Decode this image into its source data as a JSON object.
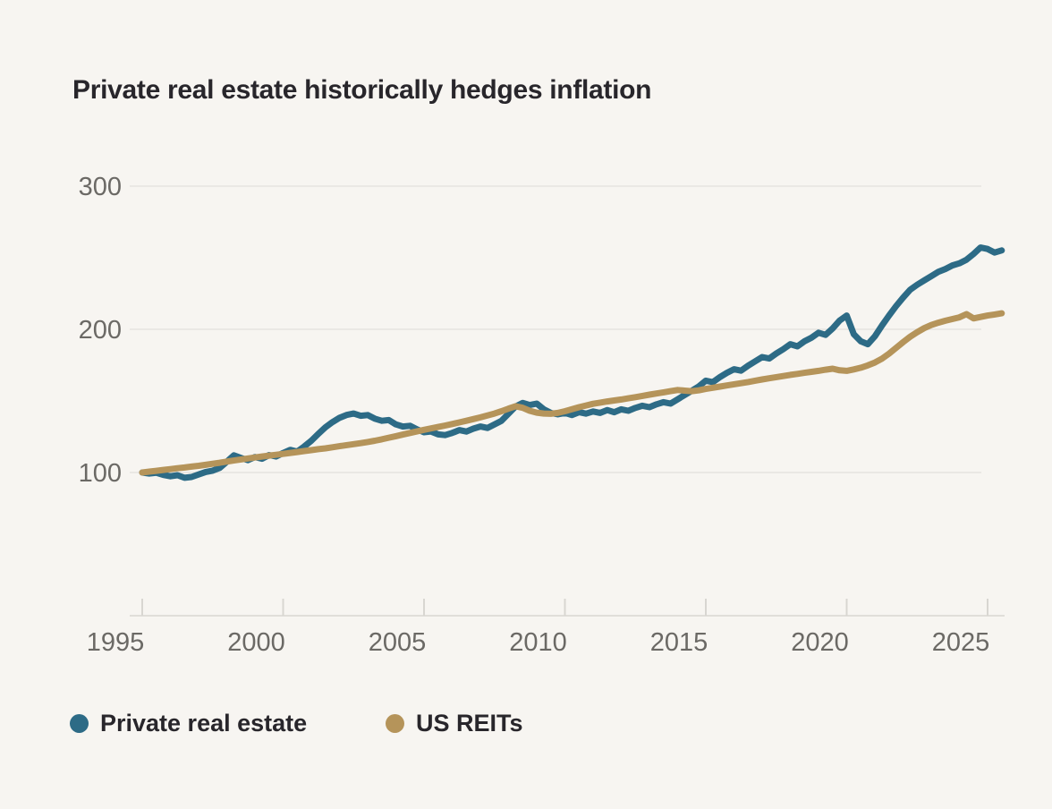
{
  "title": "Private real estate historically hedges inflation",
  "colors": {
    "background": "#f7f5f1",
    "title_text": "#28262b",
    "private_real_estate": "#2d6b86",
    "us_reits": "#b5945a",
    "gridline": "#e6e4df",
    "axis_line": "#d8d6d1",
    "tick_text": "#6b6965"
  },
  "legend": [
    {
      "label": "Private real estate",
      "color": "#2d6b86"
    },
    {
      "label": "US REITs",
      "color": "#b5945a"
    }
  ],
  "chart_data": {
    "type": "line",
    "title": "Private real estate historically hedges inflation",
    "xlabel": "",
    "ylabel": "",
    "x_ticks": [
      1995,
      2000,
      2005,
      2010,
      2015,
      2020,
      2025
    ],
    "y_ticks": [
      100,
      200,
      300
    ],
    "x_range": [
      1995,
      2025.5
    ],
    "y_range": [
      0,
      300
    ],
    "grid": "horizontal-only",
    "legend_position": "bottom",
    "series": [
      {
        "name": "Private real estate",
        "color": "#2d6b86",
        "points": [
          [
            1995.0,
            100
          ],
          [
            1995.25,
            99.3
          ],
          [
            1995.5,
            99.8
          ],
          [
            1995.75,
            98.3
          ],
          [
            1996.0,
            97.4
          ],
          [
            1996.25,
            98.1
          ],
          [
            1996.5,
            96.3
          ],
          [
            1996.75,
            96.9
          ],
          [
            1997.0,
            98.6
          ],
          [
            1997.25,
            100.4
          ],
          [
            1997.5,
            101.3
          ],
          [
            1997.75,
            103.2
          ],
          [
            1998.0,
            107.5
          ],
          [
            1998.25,
            112.0
          ],
          [
            1998.5,
            110.2
          ],
          [
            1998.75,
            108.6
          ],
          [
            1999.0,
            110.8
          ],
          [
            1999.25,
            109.6
          ],
          [
            1999.5,
            112.2
          ],
          [
            1999.75,
            111.2
          ],
          [
            2000.0,
            113.6
          ],
          [
            2000.25,
            115.8
          ],
          [
            2000.5,
            114.6
          ],
          [
            2000.75,
            118.2
          ],
          [
            2001.0,
            122.2
          ],
          [
            2001.25,
            127.0
          ],
          [
            2001.5,
            131.6
          ],
          [
            2001.75,
            135.2
          ],
          [
            2002.0,
            138.2
          ],
          [
            2002.25,
            140.2
          ],
          [
            2002.5,
            141.2
          ],
          [
            2002.75,
            139.6
          ],
          [
            2003.0,
            140.1
          ],
          [
            2003.25,
            137.6
          ],
          [
            2003.5,
            136.1
          ],
          [
            2003.75,
            136.6
          ],
          [
            2004.0,
            133.6
          ],
          [
            2004.25,
            132.1
          ],
          [
            2004.5,
            132.6
          ],
          [
            2004.75,
            130.1
          ],
          [
            2005.0,
            128.1
          ],
          [
            2005.25,
            128.6
          ],
          [
            2005.5,
            126.6
          ],
          [
            2005.75,
            126.1
          ],
          [
            2006.0,
            127.6
          ],
          [
            2006.25,
            129.6
          ],
          [
            2006.5,
            128.6
          ],
          [
            2006.75,
            130.6
          ],
          [
            2007.0,
            132.1
          ],
          [
            2007.25,
            131.1
          ],
          [
            2007.5,
            133.6
          ],
          [
            2007.75,
            136.1
          ],
          [
            2008.0,
            141.1
          ],
          [
            2008.25,
            146.1
          ],
          [
            2008.5,
            148.6
          ],
          [
            2008.75,
            147.1
          ],
          [
            2009.0,
            148.1
          ],
          [
            2009.25,
            144.1
          ],
          [
            2009.5,
            141.6
          ],
          [
            2009.75,
            140.6
          ],
          [
            2010.0,
            141.6
          ],
          [
            2010.25,
            140.1
          ],
          [
            2010.5,
            142.1
          ],
          [
            2010.75,
            141.1
          ],
          [
            2011.0,
            142.6
          ],
          [
            2011.25,
            141.6
          ],
          [
            2011.5,
            143.6
          ],
          [
            2011.75,
            142.1
          ],
          [
            2012.0,
            144.1
          ],
          [
            2012.25,
            143.1
          ],
          [
            2012.5,
            145.1
          ],
          [
            2012.75,
            146.6
          ],
          [
            2013.0,
            145.6
          ],
          [
            2013.25,
            147.6
          ],
          [
            2013.5,
            149.1
          ],
          [
            2013.75,
            148.1
          ],
          [
            2014.0,
            151.1
          ],
          [
            2014.25,
            154.1
          ],
          [
            2014.5,
            157.1
          ],
          [
            2014.75,
            160.1
          ],
          [
            2015.0,
            164.1
          ],
          [
            2015.25,
            163.1
          ],
          [
            2015.5,
            166.6
          ],
          [
            2015.75,
            169.6
          ],
          [
            2016.0,
            172.1
          ],
          [
            2016.25,
            171.1
          ],
          [
            2016.5,
            174.6
          ],
          [
            2016.75,
            177.6
          ],
          [
            2017.0,
            180.6
          ],
          [
            2017.25,
            179.6
          ],
          [
            2017.5,
            183.1
          ],
          [
            2017.75,
            186.1
          ],
          [
            2018.0,
            189.6
          ],
          [
            2018.25,
            188.1
          ],
          [
            2018.5,
            191.6
          ],
          [
            2018.75,
            194.1
          ],
          [
            2019.0,
            197.6
          ],
          [
            2019.25,
            196.1
          ],
          [
            2019.5,
            200.6
          ],
          [
            2019.75,
            206.1
          ],
          [
            2020.0,
            209.6
          ],
          [
            2020.25,
            196.6
          ],
          [
            2020.5,
            191.6
          ],
          [
            2020.75,
            189.6
          ],
          [
            2021.0,
            195.1
          ],
          [
            2021.25,
            202.6
          ],
          [
            2021.5,
            209.6
          ],
          [
            2021.75,
            216.1
          ],
          [
            2022.0,
            222.1
          ],
          [
            2022.25,
            227.6
          ],
          [
            2022.5,
            231.1
          ],
          [
            2022.75,
            234.1
          ],
          [
            2023.0,
            237.1
          ],
          [
            2023.25,
            240.1
          ],
          [
            2023.5,
            242.1
          ],
          [
            2023.75,
            244.6
          ],
          [
            2024.0,
            246.1
          ],
          [
            2024.25,
            248.6
          ],
          [
            2024.5,
            252.6
          ],
          [
            2024.75,
            257.1
          ],
          [
            2025.0,
            256.1
          ],
          [
            2025.25,
            253.6
          ],
          [
            2025.5,
            255.1
          ]
        ]
      },
      {
        "name": "US REITs",
        "color": "#b5945a",
        "points": [
          [
            1995.0,
            100
          ],
          [
            1995.25,
            100.6
          ],
          [
            1995.5,
            101.2
          ],
          [
            1995.75,
            101.8
          ],
          [
            1996.0,
            102.4
          ],
          [
            1996.25,
            103.0
          ],
          [
            1996.5,
            103.5
          ],
          [
            1996.75,
            104.1
          ],
          [
            1997.0,
            104.7
          ],
          [
            1997.25,
            105.4
          ],
          [
            1997.5,
            106.1
          ],
          [
            1997.75,
            106.8
          ],
          [
            1998.0,
            107.6
          ],
          [
            1998.25,
            108.4
          ],
          [
            1998.5,
            109.1
          ],
          [
            1998.75,
            109.8
          ],
          [
            1999.0,
            110.5
          ],
          [
            1999.25,
            111.2
          ],
          [
            1999.5,
            111.8
          ],
          [
            1999.75,
            112.4
          ],
          [
            2000.0,
            113.0
          ],
          [
            2000.25,
            113.7
          ],
          [
            2000.5,
            114.3
          ],
          [
            2000.75,
            115.0
          ],
          [
            2001.0,
            115.6
          ],
          [
            2001.25,
            116.3
          ],
          [
            2001.5,
            116.9
          ],
          [
            2001.75,
            117.6
          ],
          [
            2002.0,
            118.4
          ],
          [
            2002.25,
            119.1
          ],
          [
            2002.5,
            119.8
          ],
          [
            2002.75,
            120.5
          ],
          [
            2003.0,
            121.3
          ],
          [
            2003.25,
            122.2
          ],
          [
            2003.5,
            123.2
          ],
          [
            2003.75,
            124.3
          ],
          [
            2004.0,
            125.4
          ],
          [
            2004.25,
            126.5
          ],
          [
            2004.5,
            127.6
          ],
          [
            2004.75,
            128.7
          ],
          [
            2005.0,
            129.8
          ],
          [
            2005.25,
            130.8
          ],
          [
            2005.5,
            131.8
          ],
          [
            2005.75,
            132.8
          ],
          [
            2006.0,
            133.9
          ],
          [
            2006.25,
            135.0
          ],
          [
            2006.5,
            136.1
          ],
          [
            2006.75,
            137.3
          ],
          [
            2007.0,
            138.5
          ],
          [
            2007.25,
            139.8
          ],
          [
            2007.5,
            141.2
          ],
          [
            2007.75,
            142.8
          ],
          [
            2008.0,
            144.6
          ],
          [
            2008.25,
            146.3
          ],
          [
            2008.5,
            145.2
          ],
          [
            2008.75,
            143.1
          ],
          [
            2009.0,
            141.8
          ],
          [
            2009.25,
            141.2
          ],
          [
            2009.5,
            141.0
          ],
          [
            2009.75,
            141.6
          ],
          [
            2010.0,
            142.8
          ],
          [
            2010.25,
            144.2
          ],
          [
            2010.5,
            145.6
          ],
          [
            2010.75,
            146.8
          ],
          [
            2011.0,
            148.0
          ],
          [
            2011.25,
            148.8
          ],
          [
            2011.5,
            149.6
          ],
          [
            2011.75,
            150.3
          ],
          [
            2012.0,
            151.0
          ],
          [
            2012.25,
            151.8
          ],
          [
            2012.5,
            152.6
          ],
          [
            2012.75,
            153.5
          ],
          [
            2013.0,
            154.4
          ],
          [
            2013.25,
            155.2
          ],
          [
            2013.5,
            156.0
          ],
          [
            2013.75,
            156.8
          ],
          [
            2014.0,
            157.6
          ],
          [
            2014.25,
            157.2
          ],
          [
            2014.5,
            156.8
          ],
          [
            2014.75,
            157.4
          ],
          [
            2015.0,
            158.4
          ],
          [
            2015.25,
            159.2
          ],
          [
            2015.5,
            160.0
          ],
          [
            2015.75,
            160.8
          ],
          [
            2016.0,
            161.6
          ],
          [
            2016.25,
            162.4
          ],
          [
            2016.5,
            163.2
          ],
          [
            2016.75,
            164.1
          ],
          [
            2017.0,
            165.0
          ],
          [
            2017.25,
            165.8
          ],
          [
            2017.5,
            166.6
          ],
          [
            2017.75,
            167.4
          ],
          [
            2018.0,
            168.2
          ],
          [
            2018.25,
            168.9
          ],
          [
            2018.5,
            169.6
          ],
          [
            2018.75,
            170.3
          ],
          [
            2019.0,
            171.0
          ],
          [
            2019.25,
            171.8
          ],
          [
            2019.5,
            172.5
          ],
          [
            2019.75,
            171.4
          ],
          [
            2020.0,
            171.0
          ],
          [
            2020.25,
            172.0
          ],
          [
            2020.5,
            173.2
          ],
          [
            2020.75,
            174.8
          ],
          [
            2021.0,
            176.8
          ],
          [
            2021.25,
            179.5
          ],
          [
            2021.5,
            183.0
          ],
          [
            2021.75,
            187.0
          ],
          [
            2022.0,
            191.0
          ],
          [
            2022.25,
            194.8
          ],
          [
            2022.5,
            198.0
          ],
          [
            2022.75,
            200.8
          ],
          [
            2023.0,
            203.0
          ],
          [
            2023.25,
            204.6
          ],
          [
            2023.5,
            206.0
          ],
          [
            2023.75,
            207.2
          ],
          [
            2024.0,
            208.4
          ],
          [
            2024.25,
            210.6
          ],
          [
            2024.5,
            207.6
          ],
          [
            2024.75,
            208.6
          ],
          [
            2025.0,
            209.6
          ],
          [
            2025.25,
            210.4
          ],
          [
            2025.5,
            211.2
          ]
        ]
      }
    ]
  }
}
